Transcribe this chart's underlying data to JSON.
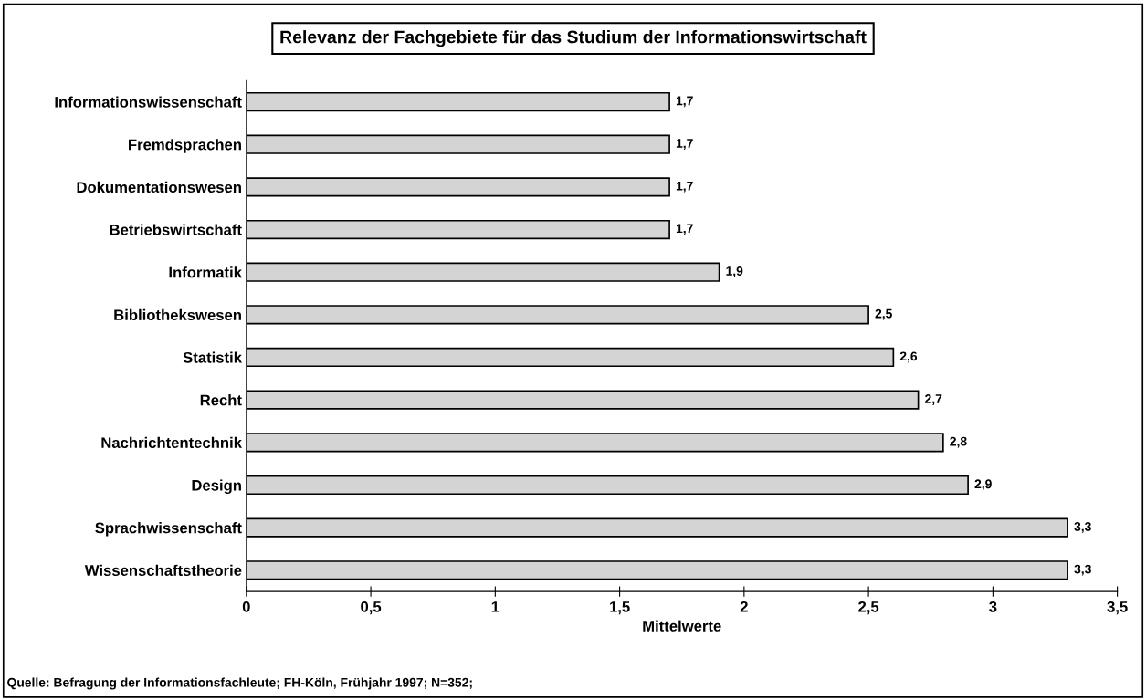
{
  "chart_data": {
    "type": "bar",
    "orientation": "horizontal",
    "title": "Relevanz der Fachgebiete für das Studium der Informationswirtschaft",
    "xlabel": "Mittelwerte",
    "categories": [
      "Informationswissenschaft",
      "Fremdsprachen",
      "Dokumentationswesen",
      "Betriebswirtschaft",
      "Informatik",
      "Bibliothekswesen",
      "Statistik",
      "Recht",
      "Nachrichtentechnik",
      "Design",
      "Sprachwissenschaft",
      "Wissenschaftstheorie"
    ],
    "values": [
      1.7,
      1.7,
      1.7,
      1.7,
      1.9,
      2.5,
      2.6,
      2.7,
      2.8,
      2.9,
      3.3,
      3.3
    ],
    "value_labels": [
      "1,7",
      "1,7",
      "1,7",
      "1,7",
      "1,9",
      "2,5",
      "2,6",
      "2,7",
      "2,8",
      "2,9",
      "3,3",
      "3,3"
    ],
    "color": "#d4d4d4",
    "xlim": [
      0,
      3.5
    ],
    "xticks": [
      0,
      {
        "value": 0.5,
        "label": "0,5"
      },
      1,
      {
        "value": 1.5,
        "label": "1,5"
      },
      2,
      {
        "value": 2.5,
        "label": "2,5"
      },
      3,
      {
        "value": 3.5,
        "label": "3,5"
      }
    ],
    "grid": false,
    "annotations": [
      "Quelle: Befragung der Informationsfachleute; FH-Köln, Frühjahr 1997; N=352;"
    ]
  }
}
